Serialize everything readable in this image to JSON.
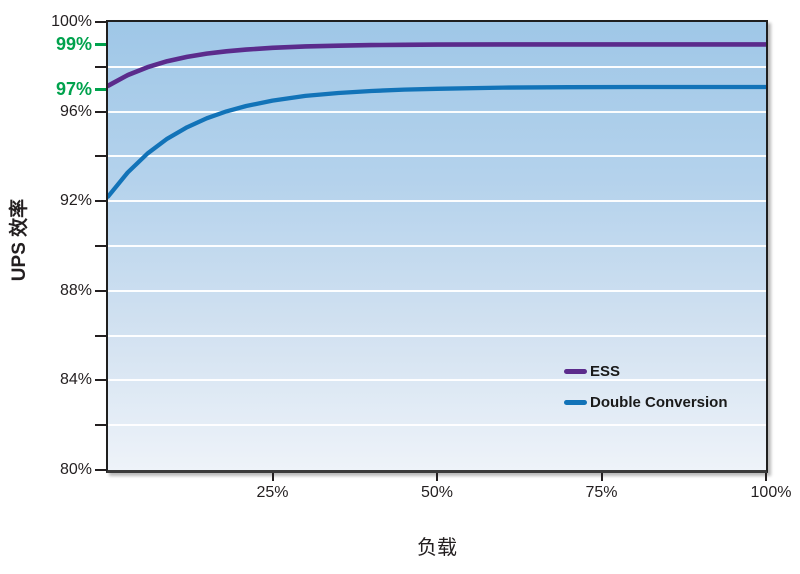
{
  "figure": {
    "colors": {
      "ess_purple": "#5b2b8c",
      "dc_blue": "#1273b8",
      "accent_green": "#00a24d",
      "axis_black": "#231f20",
      "grid_white": "#ffffff",
      "plot_bg_top": "#9fc7e7",
      "plot_bg_bottom": "#eef3f9"
    }
  },
  "chart_data": {
    "type": "line",
    "title": "",
    "xlabel": "负载",
    "ylabel": "UPS 效率",
    "xlim": [
      0,
      100
    ],
    "ylim": [
      80,
      100
    ],
    "grid": "horizontal-white-every-2pct",
    "legend_position": "inside-lower-right",
    "x_ticks": [
      {
        "v": 25,
        "label": "25%"
      },
      {
        "v": 50,
        "label": "50%"
      },
      {
        "v": 75,
        "label": "75%"
      },
      {
        "v": 100,
        "label": "100%"
      }
    ],
    "y_ticks": [
      {
        "v": 100,
        "label": "100%",
        "green": false,
        "grid": false
      },
      {
        "v": 99,
        "label": "99%",
        "green": true,
        "grid": false
      },
      {
        "v": 98,
        "label": "",
        "green": false,
        "grid": true
      },
      {
        "v": 97,
        "label": "97%",
        "green": true,
        "grid": false
      },
      {
        "v": 96,
        "label": "96%",
        "green": false,
        "grid": true
      },
      {
        "v": 94,
        "label": "",
        "green": false,
        "grid": true
      },
      {
        "v": 92,
        "label": "92%",
        "green": false,
        "grid": true
      },
      {
        "v": 90,
        "label": "",
        "green": false,
        "grid": true
      },
      {
        "v": 88,
        "label": "88%",
        "green": false,
        "grid": true
      },
      {
        "v": 86,
        "label": "",
        "green": false,
        "grid": true
      },
      {
        "v": 84,
        "label": "84%",
        "green": false,
        "grid": true
      },
      {
        "v": 82,
        "label": "",
        "green": false,
        "grid": true
      },
      {
        "v": 80,
        "label": "80%",
        "green": false,
        "grid": false
      }
    ],
    "series": [
      {
        "name": "ESS",
        "color": "#5b2b8c",
        "stroke_width": 4.6,
        "x": [
          0,
          3,
          6,
          9,
          12,
          15,
          18,
          21,
          25,
          30,
          35,
          40,
          45,
          50,
          60,
          70,
          80,
          90,
          100
        ],
        "y": [
          97.15,
          97.63,
          97.98,
          98.25,
          98.44,
          98.59,
          98.69,
          98.77,
          98.85,
          98.91,
          98.94,
          98.97,
          98.98,
          98.99,
          99.0,
          99.0,
          99.0,
          99.0,
          99.0
        ]
      },
      {
        "name": "Double Conversion",
        "color": "#1273b8",
        "stroke_width": 4.3,
        "x": [
          0,
          3,
          6,
          9,
          12,
          15,
          18,
          21,
          25,
          30,
          35,
          40,
          45,
          50,
          60,
          70,
          80,
          90,
          100
        ],
        "y": [
          92.2,
          93.28,
          94.13,
          94.79,
          95.3,
          95.7,
          96.01,
          96.25,
          96.49,
          96.7,
          96.83,
          96.92,
          96.98,
          97.02,
          97.07,
          97.09,
          97.1,
          97.1,
          97.1
        ]
      }
    ]
  }
}
